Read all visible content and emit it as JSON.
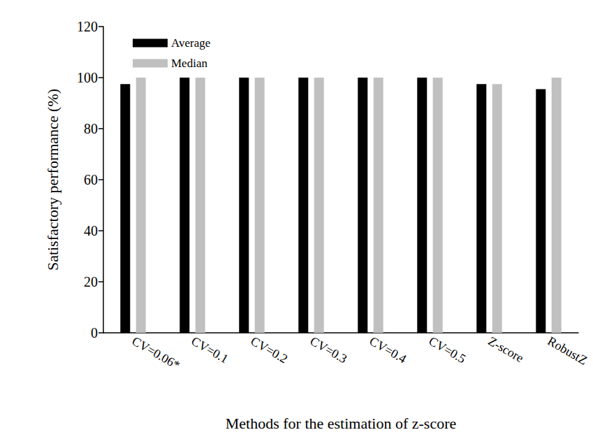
{
  "chart_data": {
    "type": "bar",
    "x_label": "Methods for the estimation of z-score",
    "y_label": "Satisfactory performance (%)",
    "categories": [
      "CV=0.06*",
      "CV=0.1",
      "CV=0.2",
      "CV=0.3",
      "CV=0.4",
      "CV=0.5",
      "Z-score",
      "RobustZ"
    ],
    "series": [
      {
        "name": "Average",
        "color": "#000000",
        "values": [
          97.5,
          100,
          100,
          100,
          100,
          100,
          97.5,
          95.5
        ]
      },
      {
        "name": "Median",
        "color": "#c0c0c0",
        "values": [
          100,
          100,
          100,
          100,
          100,
          100,
          97.5,
          100
        ]
      }
    ],
    "ylim": [
      0,
      120
    ],
    "yticks": [
      0,
      20,
      40,
      60,
      80,
      100,
      120
    ],
    "grid": false,
    "legend": "upper left"
  }
}
